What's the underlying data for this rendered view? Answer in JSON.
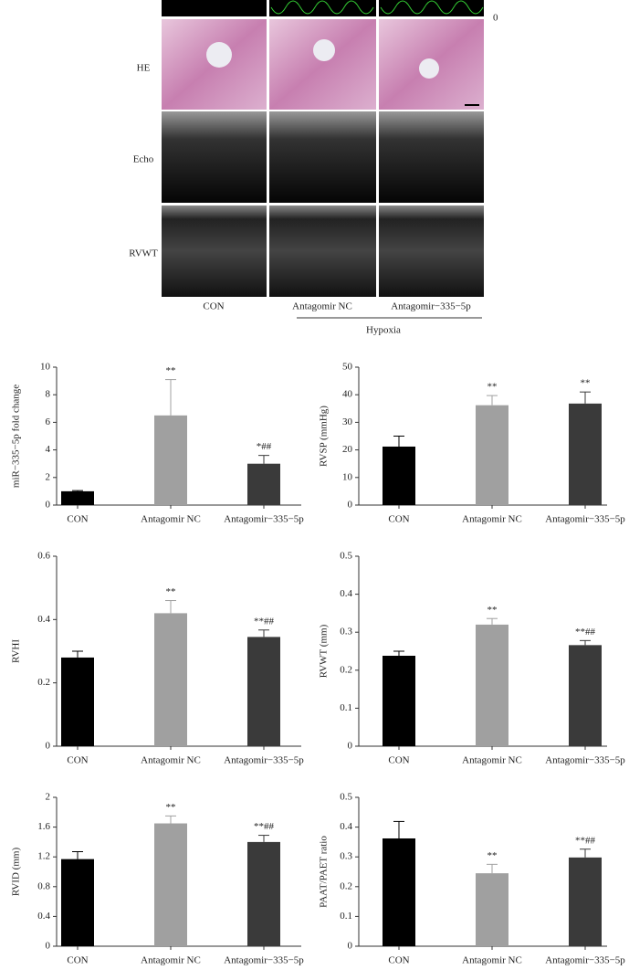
{
  "image_panel": {
    "row_labels": [
      "HE",
      "Echo",
      "RVWT"
    ],
    "column_labels": [
      "CON",
      "Antagomir NC",
      "Antagomir−335−5p"
    ],
    "group_label": "Hypoxia",
    "corner_label": "0"
  },
  "chart_data": [
    {
      "type": "bar",
      "y_label": "miR−335−5p fold change",
      "categories": [
        "CON",
        "Antagomir NC",
        "Antagomir−335−5p"
      ],
      "values": [
        1.0,
        6.5,
        3.0
      ],
      "errors": [
        0.05,
        2.6,
        0.6
      ],
      "annotations": [
        null,
        "**",
        "*##"
      ],
      "colors": [
        "#000000",
        "#a0a0a0",
        "#3a3a3a"
      ],
      "ylim": [
        0,
        10
      ],
      "yticks": [
        0,
        2,
        4,
        6,
        8,
        10
      ]
    },
    {
      "type": "bar",
      "y_label": "RVSP (mmHg)",
      "categories": [
        "CON",
        "Antagomir NC",
        "Antagomir−335−5p"
      ],
      "values": [
        21.2,
        36.2,
        36.8
      ],
      "errors": [
        3.8,
        3.5,
        4.2
      ],
      "annotations": [
        null,
        "**",
        "**"
      ],
      "colors": [
        "#000000",
        "#a0a0a0",
        "#3a3a3a"
      ],
      "ylim": [
        0,
        50
      ],
      "yticks": [
        0,
        10,
        20,
        30,
        40,
        50
      ]
    },
    {
      "type": "bar",
      "y_label": "RVHI",
      "categories": [
        "CON",
        "Antagomir NC",
        "Antagomir−335−5p"
      ],
      "values": [
        0.28,
        0.42,
        0.345
      ],
      "errors": [
        0.02,
        0.04,
        0.022
      ],
      "annotations": [
        null,
        "**",
        "**##"
      ],
      "colors": [
        "#000000",
        "#a0a0a0",
        "#3a3a3a"
      ],
      "ylim": [
        0,
        0.6
      ],
      "yticks": [
        0,
        0.2,
        0.4,
        0.6
      ]
    },
    {
      "type": "bar",
      "y_label": "RVWT (mm)",
      "categories": [
        "CON",
        "Antagomir NC",
        "Antagomir−335−5p"
      ],
      "values": [
        0.238,
        0.32,
        0.266
      ],
      "errors": [
        0.012,
        0.016,
        0.012
      ],
      "annotations": [
        null,
        "**",
        "**##"
      ],
      "colors": [
        "#000000",
        "#a0a0a0",
        "#3a3a3a"
      ],
      "ylim": [
        0,
        0.5
      ],
      "yticks": [
        0,
        0.1,
        0.2,
        0.3,
        0.4,
        0.5
      ]
    },
    {
      "type": "bar",
      "y_label": "RVID (mm)",
      "categories": [
        "CON",
        "Antagomir NC",
        "Antagomir−335−5p"
      ],
      "values": [
        1.17,
        1.65,
        1.4
      ],
      "errors": [
        0.1,
        0.1,
        0.09
      ],
      "annotations": [
        null,
        "**",
        "**##"
      ],
      "colors": [
        "#000000",
        "#a0a0a0",
        "#3a3a3a"
      ],
      "ylim": [
        0,
        2
      ],
      "yticks": [
        0,
        0.4,
        0.8,
        1.2,
        1.6,
        2
      ]
    },
    {
      "type": "bar",
      "y_label": "PAAT/PAET ratio",
      "categories": [
        "CON",
        "Antagomir NC",
        "Antagomir−335−5p"
      ],
      "values": [
        0.362,
        0.245,
        0.298
      ],
      "errors": [
        0.057,
        0.03,
        0.028
      ],
      "annotations": [
        null,
        "**",
        "**##"
      ],
      "colors": [
        "#000000",
        "#a0a0a0",
        "#3a3a3a"
      ],
      "ylim": [
        0,
        0.5
      ],
      "yticks": [
        0,
        0.1,
        0.2,
        0.3,
        0.4,
        0.5
      ]
    }
  ]
}
